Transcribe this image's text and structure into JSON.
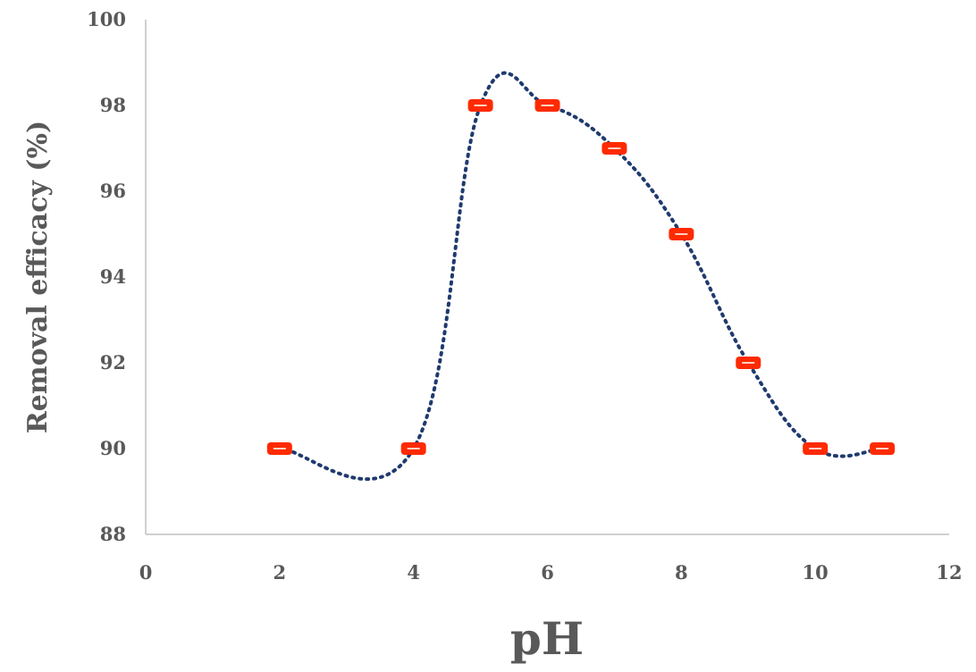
{
  "chart_data": {
    "type": "scatter",
    "xlabel": "pH",
    "ylabel": "Removal efficacy (%)",
    "xlim": [
      0,
      12
    ],
    "ylim": [
      88,
      100
    ],
    "xticks": [
      "0",
      "2",
      "4",
      "6",
      "8",
      "10",
      "12"
    ],
    "yticks": [
      "88",
      "90",
      "92",
      "94",
      "96",
      "98",
      "100"
    ],
    "grid": false,
    "legend": "none",
    "series": [
      {
        "x": [
          2,
          4,
          5,
          6,
          7,
          8,
          9,
          10,
          11
        ],
        "y": [
          90,
          90,
          98,
          98,
          97,
          95,
          92,
          90,
          90
        ],
        "marker_color": "#ff2a00",
        "trendline": "dotted smooth",
        "trendline_color": "#1f3a6e"
      }
    ]
  }
}
